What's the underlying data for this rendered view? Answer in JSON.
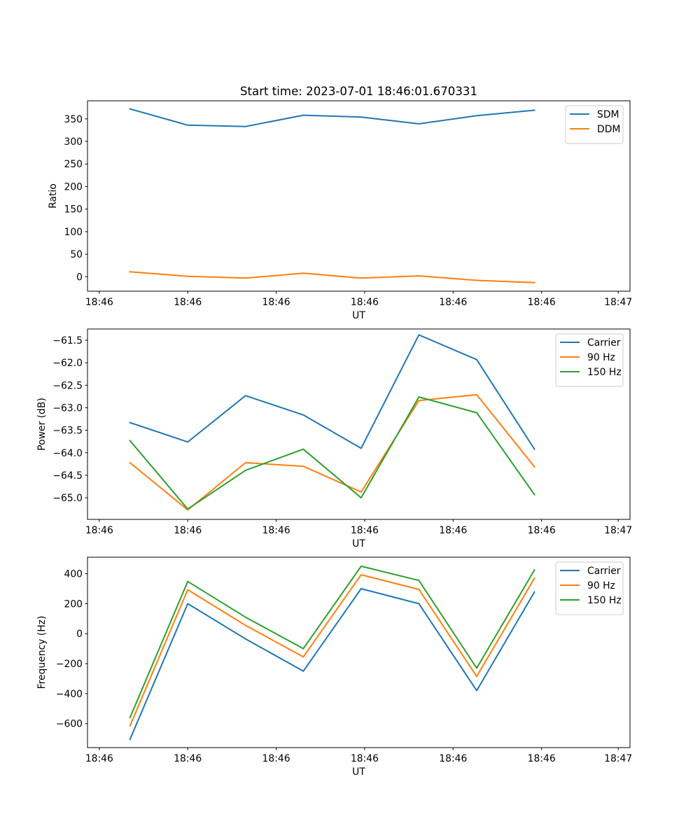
{
  "title": "Start time: 2023-07-01 18:46:01.670331",
  "colors": {
    "blue": "#1f77b4",
    "orange": "#ff7f0e",
    "green": "#2ca02c"
  },
  "chart_data": [
    {
      "type": "line",
      "ylabel": "Ratio",
      "xlabel": "UT",
      "xlim": [
        0,
        9.2
      ],
      "ylim": [
        -32,
        390
      ],
      "x": [
        0.72,
        1.7,
        2.68,
        3.66,
        4.64,
        5.62,
        6.6,
        7.58
      ],
      "yticks": [
        0,
        50,
        100,
        150,
        200,
        250,
        300,
        350
      ],
      "ytick_labels": [
        "0",
        "50",
        "100",
        "150",
        "200",
        "250",
        "300",
        "350"
      ],
      "xticks": [
        0.2,
        1.7,
        3.2,
        4.7,
        6.2,
        7.7,
        9.0
      ],
      "xtick_labels": [
        "18:46",
        "18:46",
        "18:46",
        "18:46",
        "18:46",
        "18:46",
        "18:47"
      ],
      "legend": "top-right",
      "series": [
        {
          "name": "SDM",
          "color": "#1f77b4",
          "values": [
            372,
            336,
            333,
            358,
            354,
            339,
            357,
            369
          ]
        },
        {
          "name": "DDM",
          "color": "#ff7f0e",
          "values": [
            11,
            1,
            -3,
            8,
            -3,
            2,
            -8,
            -13
          ]
        }
      ]
    },
    {
      "type": "line",
      "ylabel": "Power (dB)",
      "xlabel": "UT",
      "xlim": [
        0,
        9.2
      ],
      "ylim": [
        -65.48,
        -61.25
      ],
      "x": [
        0.72,
        1.7,
        2.68,
        3.66,
        4.64,
        5.62,
        6.6,
        7.58
      ],
      "yticks": [
        -65.0,
        -64.5,
        -64.0,
        -63.5,
        -63.0,
        -62.5,
        -62.0,
        -61.5
      ],
      "ytick_labels": [
        "−65.0",
        "−64.5",
        "−64.0",
        "−63.5",
        "−63.0",
        "−62.5",
        "−62.0",
        "−61.5"
      ],
      "xticks": [
        0.2,
        1.7,
        3.2,
        4.7,
        6.2,
        7.7,
        9.0
      ],
      "xtick_labels": [
        "18:46",
        "18:46",
        "18:46",
        "18:46",
        "18:46",
        "18:46",
        "18:47"
      ],
      "legend": "top-right",
      "series": [
        {
          "name": "Carrier",
          "color": "#1f77b4",
          "values": [
            -63.33,
            -63.76,
            -62.73,
            -63.16,
            -63.9,
            -61.38,
            -61.93,
            -63.92
          ]
        },
        {
          "name": "90 Hz",
          "color": "#ff7f0e",
          "values": [
            -64.22,
            -65.27,
            -64.22,
            -64.3,
            -64.87,
            -62.84,
            -62.71,
            -64.31
          ]
        },
        {
          "name": "150 Hz",
          "color": "#2ca02c",
          "values": [
            -63.73,
            -65.25,
            -64.39,
            -63.92,
            -65.0,
            -62.76,
            -63.11,
            -64.93
          ]
        }
      ]
    },
    {
      "type": "line",
      "ylabel": "Frequency (Hz)",
      "xlabel": "UT",
      "xlim": [
        0,
        9.2
      ],
      "ylim": [
        -760,
        510
      ],
      "x": [
        0.72,
        1.7,
        2.68,
        3.66,
        4.64,
        5.62,
        6.6,
        7.58
      ],
      "yticks": [
        -600,
        -400,
        -200,
        0,
        200,
        400
      ],
      "ytick_labels": [
        "−600",
        "−400",
        "−200",
        "0",
        "200",
        "400"
      ],
      "xticks": [
        0.2,
        1.7,
        3.2,
        4.7,
        6.2,
        7.7,
        9.0
      ],
      "xtick_labels": [
        "18:46",
        "18:46",
        "18:46",
        "18:46",
        "18:46",
        "18:46",
        "18:47"
      ],
      "legend": "top-right",
      "series": [
        {
          "name": "Carrier",
          "color": "#1f77b4",
          "values": [
            -705,
            200,
            -35,
            -250,
            300,
            200,
            -380,
            278
          ]
        },
        {
          "name": "90 Hz",
          "color": "#ff7f0e",
          "values": [
            -615,
            293,
            55,
            -155,
            393,
            295,
            -285,
            370
          ]
        },
        {
          "name": "150 Hz",
          "color": "#2ca02c",
          "values": [
            -560,
            348,
            110,
            -100,
            450,
            355,
            -230,
            425
          ]
        }
      ]
    }
  ]
}
